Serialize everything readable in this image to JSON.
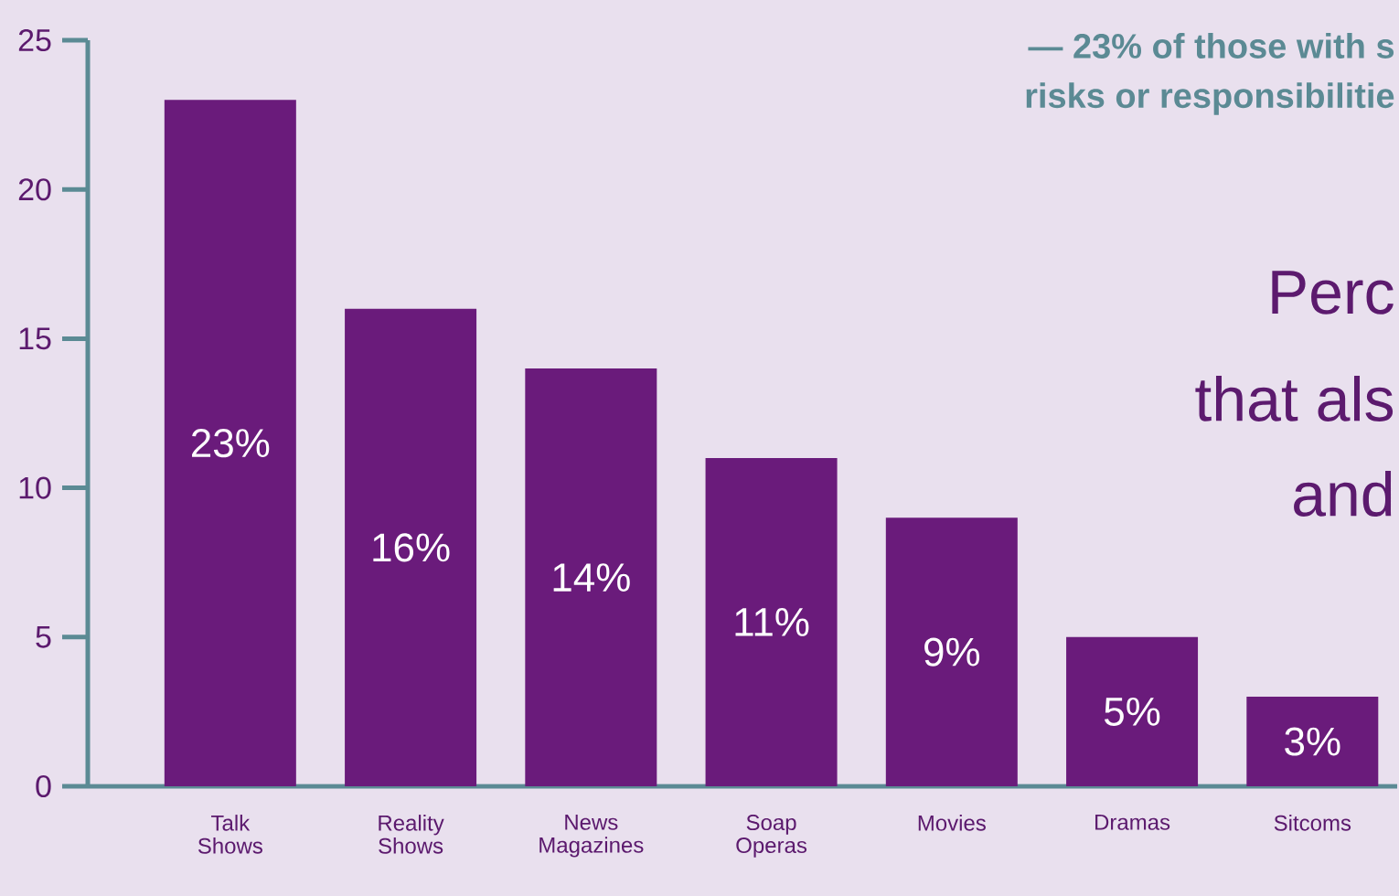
{
  "chart_data": {
    "type": "bar",
    "categories": [
      "Talk Shows",
      "Reality Shows",
      "News Magazines",
      "Soap Operas",
      "Movies",
      "Dramas",
      "Sitcoms"
    ],
    "values": [
      23,
      16,
      14,
      11,
      9,
      5,
      3
    ],
    "value_labels": [
      "23%",
      "16%",
      "14%",
      "11%",
      "9%",
      "5%",
      "3%"
    ],
    "color": "#6a1b7b",
    "ylim": [
      0,
      25
    ],
    "yticks": [
      0,
      5,
      10,
      15,
      20,
      25
    ],
    "annotations": [
      "— 23% of those with s",
      "risks or responsibilitie",
      "Perc",
      "that als",
      "and"
    ]
  }
}
